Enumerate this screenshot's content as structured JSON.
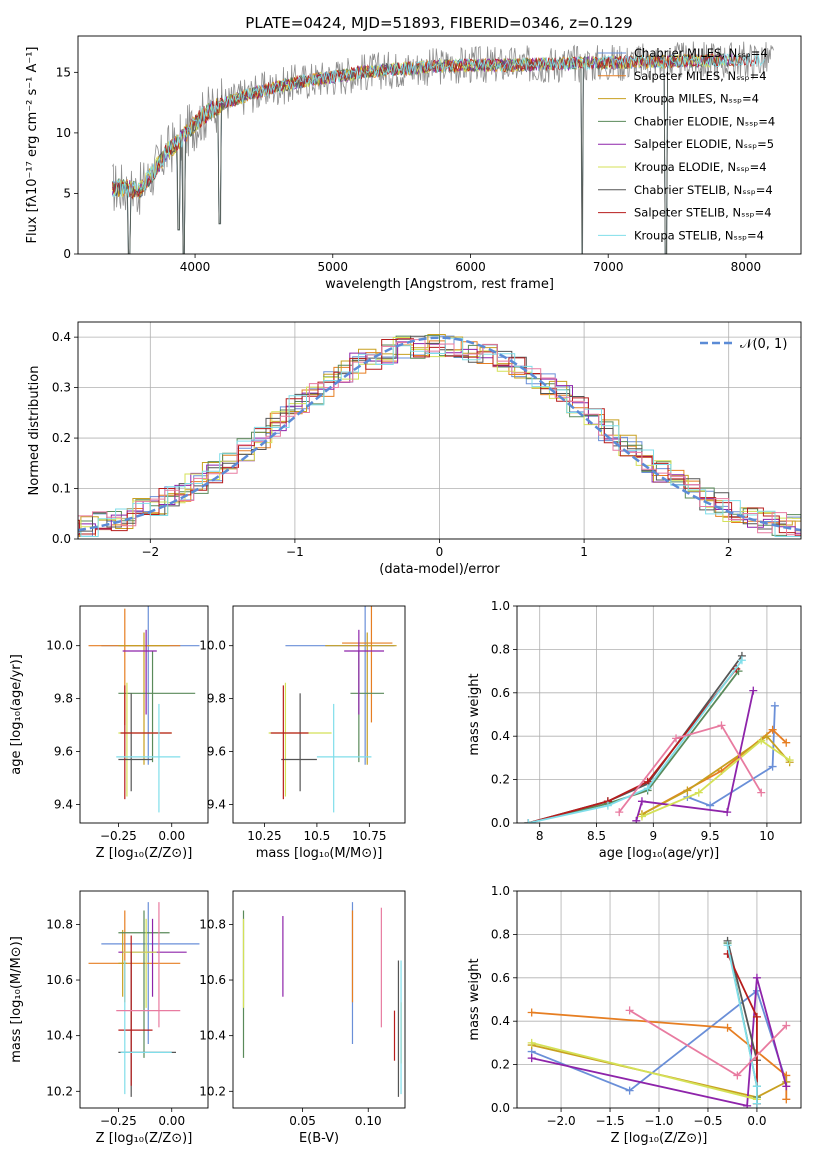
{
  "figure_title": "PLATE=0424, MJD=51893, FIBERID=0346, z=0.129",
  "series_colors": [
    "#6a8fd8",
    "#e67e22",
    "#c8a020",
    "#5a8a5a",
    "#8e24aa",
    "#d4e157",
    "#555555",
    "#b71c1c",
    "#80deea",
    "#e87ba0"
  ],
  "chart_data": [
    {
      "id": "spectrum",
      "type": "line",
      "title": "PLATE=0424, MJD=51893, FIBERID=0346, z=0.129",
      "xlabel": "wavelength [Angstrom, rest frame]",
      "ylabel": "Flux [fλ10⁻¹⁷ erg cm⁻² s⁻¹ A⁻¹]",
      "xlim": [
        3150,
        8400
      ],
      "ylim": [
        0,
        18
      ],
      "xticks": [
        4000,
        5000,
        6000,
        7000,
        8000
      ],
      "yticks": [
        0,
        5,
        10,
        15
      ],
      "grid": false,
      "legend_position": "right",
      "legend": [
        "Chabrier MILES, Nₛₛₚ=4",
        "Salpeter MILES, Nₛₛₚ=4",
        "Kroupa MILES, Nₛₛₚ=4",
        "Chabrier ELODIE, Nₛₛₚ=4",
        "Salpeter ELODIE, Nₛₛₚ=5",
        "Kroupa ELODIE, Nₛₛₚ=4",
        "Chabrier STELIB, Nₛₛₚ=4",
        "Salpeter STELIB, Nₛₛₚ=4",
        "Kroupa STELIB, Nₛₛₚ=4"
      ],
      "legend_colors": [
        "#6a8fd8",
        "#e67e22",
        "#c8a020",
        "#5a8a5a",
        "#8e24aa",
        "#d4e157",
        "#555555",
        "#b71c1c",
        "#80deea"
      ],
      "continuum": [
        [
          3400,
          5.5
        ],
        [
          3600,
          5.3
        ],
        [
          3700,
          6.8
        ],
        [
          3800,
          8.5
        ],
        [
          3900,
          9.5
        ],
        [
          4000,
          10.8
        ],
        [
          4100,
          11.8
        ],
        [
          4200,
          12.4
        ],
        [
          4400,
          13.2
        ],
        [
          4600,
          13.8
        ],
        [
          4800,
          14.3
        ],
        [
          5000,
          14.6
        ],
        [
          5200,
          15.0
        ],
        [
          5500,
          15.3
        ],
        [
          5800,
          15.5
        ],
        [
          6000,
          15.6
        ],
        [
          6300,
          15.6
        ],
        [
          6600,
          15.7
        ],
        [
          7000,
          15.8
        ],
        [
          7400,
          15.9
        ],
        [
          7800,
          16.0
        ],
        [
          8200,
          16.0
        ]
      ],
      "drops": [
        [
          3520,
          0
        ],
        [
          3880,
          2.0
        ],
        [
          3920,
          0
        ],
        [
          4180,
          2.5
        ],
        [
          6810,
          0
        ],
        [
          7420,
          0
        ]
      ]
    },
    {
      "id": "residuals",
      "type": "histogram",
      "xlabel": "(data-model)/error",
      "ylabel": "Normed distribution",
      "xlim": [
        -2.5,
        2.5
      ],
      "ylim": [
        0,
        0.43
      ],
      "xticks": [
        -2,
        -1,
        0,
        1,
        2
      ],
      "yticks": [
        0.0,
        0.1,
        0.2,
        0.3,
        0.4
      ],
      "grid": true,
      "legend_position": "top-right",
      "reference_label": "𝒩(0, 1)",
      "reference_color": "#5b8bd6"
    },
    {
      "id": "age-vs-Z",
      "type": "errorbar",
      "xlabel": "Z [log₁₀(Z/Z⊙)]",
      "ylabel": "age  [log₁₀(age/yr)]",
      "xlim": [
        -0.43,
        0.17
      ],
      "ylim": [
        9.33,
        10.15
      ],
      "xticks": [
        -0.25,
        0.0
      ],
      "xtick_labels": [
        "−0.25",
        "0.00"
      ],
      "yticks": [
        9.4,
        9.6,
        9.8,
        10.0
      ],
      "points": [
        {
          "x": -0.11,
          "y": 10.0,
          "xe": [
            0.22,
            0.24
          ],
          "ye": [
            0.45,
            0.15
          ]
        },
        {
          "x": -0.22,
          "y": 10.0,
          "xe": [
            0.17,
            0.26
          ],
          "ye": [
            0.3,
            0.14
          ]
        },
        {
          "x": -0.13,
          "y": 10.0,
          "xe": [
            0.12,
            0.12
          ],
          "ye": [
            0.45,
            0.05
          ]
        },
        {
          "x": -0.09,
          "y": 9.82,
          "xe": [
            0.16,
            0.2
          ],
          "ye": [
            0.26,
            0.16
          ]
        },
        {
          "x": -0.12,
          "y": 9.98,
          "xe": [
            0.11,
            0.05
          ],
          "ye": [
            0.24,
            0.08
          ]
        },
        {
          "x": -0.21,
          "y": 9.67,
          "xe": [
            0.04,
            0.21
          ],
          "ye": [
            0.24,
            0.19
          ]
        },
        {
          "x": -0.19,
          "y": 9.57,
          "xe": [
            0.06,
            0.1
          ],
          "ye": [
            0.12,
            0.25
          ]
        },
        {
          "x": -0.22,
          "y": 9.67,
          "xe": [
            0.02,
            0.22
          ],
          "ye": [
            0.25,
            0.18
          ]
        },
        {
          "x": -0.06,
          "y": 9.58,
          "xe": [
            0.2,
            0.1
          ],
          "ye": [
            0.21,
            0.2
          ]
        }
      ]
    },
    {
      "id": "age-vs-mass",
      "type": "errorbar",
      "xlabel": "mass [log₁₀(M/M⊙)]",
      "ylabel": "",
      "xlim": [
        10.1,
        10.92
      ],
      "ylim": [
        9.33,
        10.15
      ],
      "xticks": [
        10.25,
        10.5,
        10.75
      ],
      "yticks": [
        9.4,
        9.6,
        9.8,
        10.0
      ],
      "points": [
        {
          "x": 10.73,
          "y": 10.0,
          "xe": [
            0.38,
            0.14
          ],
          "ye": [
            0.45,
            0.15
          ]
        },
        {
          "x": 10.76,
          "y": 10.01,
          "xe": [
            0.14,
            0.1
          ],
          "ye": [
            0.3,
            0.14
          ]
        },
        {
          "x": 10.74,
          "y": 10.0,
          "xe": [
            0.2,
            0.14
          ],
          "ye": [
            0.45,
            0.05
          ]
        },
        {
          "x": 10.7,
          "y": 9.82,
          "xe": [
            0.04,
            0.12
          ],
          "ye": [
            0.26,
            0.16
          ]
        },
        {
          "x": 10.7,
          "y": 9.98,
          "xe": [
            0.07,
            0.12
          ],
          "ye": [
            0.24,
            0.08
          ]
        },
        {
          "x": 10.35,
          "y": 9.67,
          "xe": [
            0.08,
            0.22
          ],
          "ye": [
            0.24,
            0.19
          ]
        },
        {
          "x": 10.42,
          "y": 9.57,
          "xe": [
            0.09,
            0.08
          ],
          "ye": [
            0.12,
            0.25
          ]
        },
        {
          "x": 10.34,
          "y": 9.67,
          "xe": [
            0.06,
            0.12
          ],
          "ye": [
            0.25,
            0.18
          ]
        },
        {
          "x": 10.58,
          "y": 9.58,
          "xe": [
            0.08,
            0.18
          ],
          "ye": [
            0.21,
            0.2
          ]
        }
      ]
    },
    {
      "id": "weight-vs-age",
      "type": "line",
      "xlabel": "age  [log₁₀(age/yr)]",
      "ylabel": "mass weight",
      "xlim": [
        7.8,
        10.3
      ],
      "ylim": [
        0,
        1
      ],
      "xticks": [
        8.0,
        8.5,
        9.0,
        9.5,
        10.0
      ],
      "yticks": [
        0.0,
        0.2,
        0.4,
        0.6,
        0.8,
        1.0
      ],
      "grid": true,
      "series": [
        {
          "x": [
            9.3,
            9.5,
            10.05,
            10.07
          ],
          "y": [
            0.12,
            0.08,
            0.26,
            0.54
          ]
        },
        {
          "x": [
            8.9,
            9.6,
            10.05,
            10.17
          ],
          "y": [
            0.04,
            0.24,
            0.43,
            0.37
          ]
        },
        {
          "x": [
            8.9,
            9.3,
            10.0,
            10.2
          ],
          "y": [
            0.04,
            0.15,
            0.4,
            0.28
          ]
        },
        {
          "x": [
            7.9,
            8.6,
            8.95,
            9.75
          ],
          "y": [
            0.0,
            0.09,
            0.15,
            0.7
          ]
        },
        {
          "x": [
            8.85,
            8.9,
            9.65,
            9.88
          ],
          "y": [
            0.01,
            0.1,
            0.05,
            0.61
          ]
        },
        {
          "x": [
            8.9,
            9.4,
            9.95,
            10.2
          ],
          "y": [
            0.03,
            0.14,
            0.38,
            0.29
          ]
        },
        {
          "x": [
            7.9,
            8.6,
            8.95,
            9.78
          ],
          "y": [
            0.0,
            0.1,
            0.18,
            0.77
          ]
        },
        {
          "x": [
            7.9,
            8.6,
            8.95,
            9.73
          ],
          "y": [
            0.0,
            0.1,
            0.19,
            0.71
          ]
        },
        {
          "x": [
            7.9,
            8.6,
            8.95,
            9.78
          ],
          "y": [
            0.0,
            0.08,
            0.16,
            0.75
          ]
        },
        {
          "x": [
            8.7,
            9.2,
            9.6,
            9.95
          ],
          "y": [
            0.05,
            0.39,
            0.45,
            0.14
          ]
        }
      ]
    },
    {
      "id": "mass-vs-Z",
      "type": "errorbar",
      "xlabel": "Z [log₁₀(Z/Z⊙)]",
      "ylabel": "mass [log₁₀(M/M⊙)]",
      "xlim": [
        -0.43,
        0.17
      ],
      "ylim": [
        10.14,
        10.92
      ],
      "xticks": [
        -0.25,
        0.0
      ],
      "xtick_labels": [
        "−0.25",
        "0.00"
      ],
      "yticks": [
        10.2,
        10.4,
        10.6,
        10.8
      ],
      "points": [
        {
          "x": -0.11,
          "y": 10.73,
          "xe": [
            0.22,
            0.24
          ],
          "ye": [
            0.36,
            0.15
          ]
        },
        {
          "x": -0.22,
          "y": 10.66,
          "xe": [
            0.17,
            0.26
          ],
          "ye": [
            0.14,
            0.19
          ]
        },
        {
          "x": -0.23,
          "y": 10.66,
          "xe": [
            0.02,
            0.02
          ],
          "ye": [
            0.12,
            0.12
          ]
        },
        {
          "x": -0.13,
          "y": 10.77,
          "xe": [
            0.12,
            0.12
          ],
          "ye": [
            0.45,
            0.08
          ]
        },
        {
          "x": -0.09,
          "y": 10.7,
          "xe": [
            0.16,
            0.16
          ],
          "ye": [
            0.16,
            0.12
          ]
        },
        {
          "x": -0.12,
          "y": 10.7,
          "xe": [
            0.11,
            0.05
          ],
          "ye": [
            0.2,
            0.12
          ]
        },
        {
          "x": -0.19,
          "y": 10.34,
          "xe": [
            0.06,
            0.21
          ],
          "ye": [
            0.16,
            0.36
          ]
        },
        {
          "x": -0.19,
          "y": 10.42,
          "xe": [
            0.06,
            0.1
          ],
          "ye": [
            0.2,
            0.34
          ]
        },
        {
          "x": -0.22,
          "y": 10.34,
          "xe": [
            0.02,
            0.22
          ],
          "ye": [
            0.15,
            0.33
          ]
        },
        {
          "x": -0.06,
          "y": 10.49,
          "xe": [
            0.2,
            0.1
          ],
          "ye": [
            0.06,
            0.39
          ]
        }
      ]
    },
    {
      "id": "mass-vs-EBV",
      "type": "errorbar",
      "xlabel": "E(B-V)",
      "ylabel": "",
      "xlim": [
        -0.003,
        0.128
      ],
      "ylim": [
        10.14,
        10.92
      ],
      "xticks": [
        0.05,
        0.1
      ],
      "xtick_labels": [
        "0.05",
        "0.10"
      ],
      "yticks": [
        10.2,
        10.4,
        10.6,
        10.8
      ],
      "points": [
        {
          "x": 0.088,
          "y": 10.73,
          "ye": [
            0.36,
            0.15
          ]
        },
        {
          "x": 0.088,
          "y": 10.66,
          "ye": [
            0.14,
            0.19
          ]
        },
        {
          "x": 0.125,
          "y": 10.42,
          "ye": [
            0.12,
            0.1
          ]
        },
        {
          "x": 0.005,
          "y": 10.77,
          "ye": [
            0.45,
            0.08
          ]
        },
        {
          "x": 0.035,
          "y": 10.7,
          "ye": [
            0.16,
            0.13
          ]
        },
        {
          "x": 0.005,
          "y": 10.7,
          "ye": [
            0.2,
            0.12
          ]
        },
        {
          "x": 0.123,
          "y": 10.34,
          "ye": [
            0.16,
            0.33
          ]
        },
        {
          "x": 0.12,
          "y": 10.42,
          "ye": [
            0.11,
            0.07
          ]
        },
        {
          "x": 0.125,
          "y": 10.34,
          "ye": [
            0.15,
            0.33
          ]
        },
        {
          "x": 0.11,
          "y": 10.49,
          "ye": [
            0.06,
            0.37
          ]
        }
      ]
    },
    {
      "id": "weight-vs-Z",
      "type": "line",
      "xlabel": "Z [log₁₀(Z/Z⊙)]",
      "ylabel": "mass weight",
      "xlim": [
        -2.45,
        0.45
      ],
      "ylim": [
        0,
        1
      ],
      "xticks": [
        -2.0,
        -1.5,
        -1.0,
        -0.5,
        0.0
      ],
      "xtick_labels": [
        "−2.0",
        "−1.5",
        "−1.0",
        "−0.5",
        "0.0"
      ],
      "yticks": [
        0.0,
        0.2,
        0.4,
        0.6,
        0.8,
        1.0
      ],
      "grid": true,
      "series": [
        {
          "x": [
            -2.3,
            -1.3,
            0.0,
            0.3
          ],
          "y": [
            0.26,
            0.08,
            0.54,
            0.12
          ]
        },
        {
          "x": [
            -2.3,
            -0.3,
            0.3,
            0.3
          ],
          "y": [
            0.44,
            0.37,
            0.15,
            0.04
          ]
        },
        {
          "x": [
            -2.3,
            0.0,
            0.3
          ],
          "y": [
            0.29,
            0.05,
            0.12
          ]
        },
        {
          "x": [
            -0.3,
            0.0,
            0.0
          ],
          "y": [
            0.76,
            0.1,
            0.05
          ]
        },
        {
          "x": [
            -2.3,
            -0.1,
            0.0,
            0.3
          ],
          "y": [
            0.23,
            0.01,
            0.6,
            0.1
          ]
        },
        {
          "x": [
            -2.3,
            0.0,
            0.0
          ],
          "y": [
            0.3,
            0.04,
            0.42
          ]
        },
        {
          "x": [
            -0.3,
            0.0,
            0.0
          ],
          "y": [
            0.77,
            0.22,
            0.02
          ]
        },
        {
          "x": [
            -0.3,
            0.0,
            0.0
          ],
          "y": [
            0.71,
            0.42,
            0.02
          ]
        },
        {
          "x": [
            -0.3,
            0.0,
            0.0
          ],
          "y": [
            0.75,
            0.1,
            0.02
          ]
        },
        {
          "x": [
            -1.3,
            -0.2,
            0.3
          ],
          "y": [
            0.45,
            0.15,
            0.38
          ]
        }
      ]
    }
  ]
}
